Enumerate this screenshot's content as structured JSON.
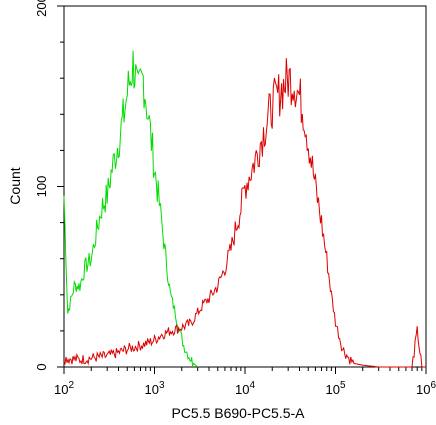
{
  "chart_data": {
    "type": "line",
    "title": "",
    "xlabel": "PC5.5 B690-PC5.5-A",
    "ylabel": "Count",
    "x_scale": "log",
    "xlim": [
      100,
      1000000
    ],
    "ylim": [
      0,
      200
    ],
    "grid": false,
    "legend": "none",
    "x_ticks": [
      {
        "base": "10",
        "exp": "2"
      },
      {
        "base": "10",
        "exp": "3"
      },
      {
        "base": "10",
        "exp": "4"
      },
      {
        "base": "10",
        "exp": "5"
      },
      {
        "base": "10",
        "exp": "6"
      }
    ],
    "y_ticks": [
      "0",
      "100",
      "200"
    ],
    "series": [
      {
        "color": "#00dd00",
        "x": [
          100,
          110,
          130,
          150,
          170,
          200,
          230,
          260,
          300,
          340,
          380,
          420,
          460,
          500,
          540,
          580,
          620,
          660,
          700,
          750,
          800,
          850,
          900,
          950,
          1000,
          1100,
          1200,
          1300,
          1500,
          1700,
          1900,
          2100,
          2400,
          2700,
          3000
        ],
        "y": [
          95,
          30,
          45,
          45,
          55,
          60,
          75,
          88,
          95,
          110,
          120,
          130,
          140,
          152,
          160,
          168,
          160,
          150,
          155,
          160,
          150,
          140,
          130,
          120,
          110,
          95,
          80,
          65,
          40,
          30,
          20,
          12,
          6,
          2,
          0
        ]
      },
      {
        "color": "#dd0000",
        "x": [
          100,
          150,
          200,
          300,
          400,
          500,
          600,
          700,
          800,
          900,
          1000,
          1200,
          1500,
          2000,
          2500,
          3000,
          3500,
          4000,
          5000,
          6000,
          7000,
          8000,
          9000,
          10000,
          12000,
          14000,
          16000,
          18000,
          20000,
          23000,
          26000,
          30000,
          35000,
          40000,
          45000,
          50000,
          60000,
          70000,
          80000,
          90000,
          100000,
          120000,
          140000,
          160000,
          200000,
          300000,
          500000,
          700000,
          800000,
          900000,
          1000000
        ],
        "y": [
          5,
          4,
          5,
          6,
          8,
          10,
          11,
          12,
          13,
          14,
          15,
          18,
          20,
          22,
          24,
          30,
          35,
          38,
          45,
          55,
          65,
          78,
          88,
          100,
          110,
          120,
          130,
          138,
          145,
          150,
          155,
          160,
          158,
          150,
          140,
          125,
          100,
          80,
          60,
          40,
          25,
          10,
          5,
          2,
          1,
          0,
          0,
          0,
          20,
          0,
          0
        ]
      }
    ]
  }
}
